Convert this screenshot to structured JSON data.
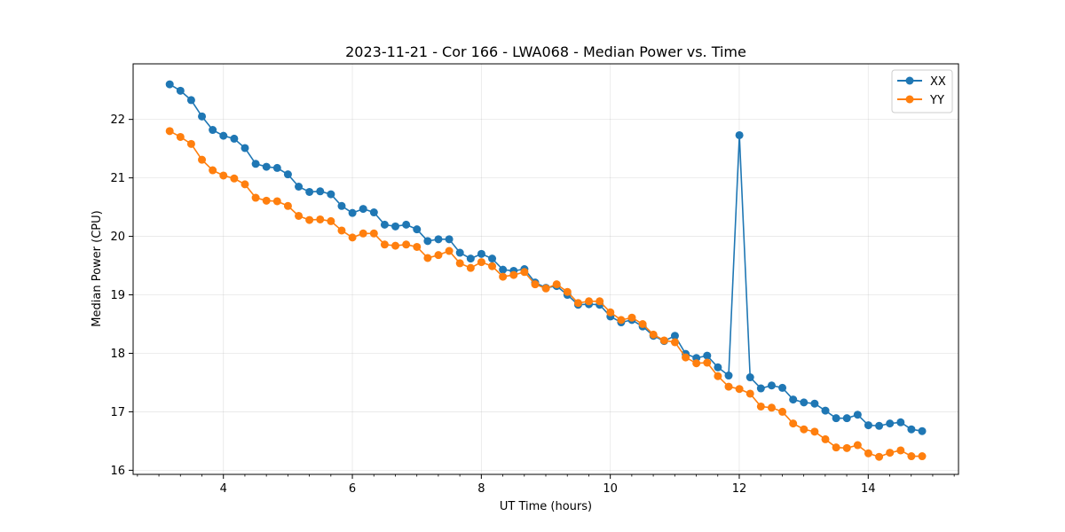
{
  "chart_data": {
    "type": "line",
    "title": "2023-11-21 - Cor 166 - LWA068 - Median Power vs. Time",
    "xlabel": "UT Time (hours)",
    "ylabel": "Median Power (CPU)",
    "xlim": [
      2.6,
      15.4
    ],
    "ylim": [
      15.93,
      22.95
    ],
    "xticks": [
      4,
      6,
      8,
      10,
      12,
      14
    ],
    "xtick_labels": [
      "4",
      "6",
      "8",
      "10",
      "12",
      "14"
    ],
    "xminor_step": 0.333333,
    "yticks": [
      16,
      17,
      18,
      19,
      20,
      21,
      22
    ],
    "ytick_labels": [
      "16",
      "17",
      "18",
      "19",
      "20",
      "21",
      "22"
    ],
    "grid": true,
    "legend": "top-right",
    "x_start": 3.167,
    "x_step": 0.1667,
    "series": [
      {
        "name": "XX",
        "color": "#1f77b4",
        "values": [
          22.6,
          22.49,
          22.33,
          22.05,
          21.82,
          21.72,
          21.67,
          21.51,
          21.24,
          21.19,
          21.17,
          21.06,
          20.85,
          20.76,
          20.77,
          20.72,
          20.52,
          20.4,
          20.47,
          20.41,
          20.2,
          20.17,
          20.2,
          20.12,
          19.92,
          19.95,
          19.95,
          19.72,
          19.62,
          19.7,
          19.62,
          19.43,
          19.41,
          19.44,
          19.21,
          19.12,
          19.15,
          19.0,
          18.83,
          18.84,
          18.83,
          18.63,
          18.53,
          18.57,
          18.46,
          18.3,
          18.21,
          18.3,
          17.99,
          17.92,
          17.96,
          17.76,
          17.62,
          21.73,
          17.59,
          17.4,
          17.45,
          17.41,
          17.21,
          17.16,
          17.14,
          17.02,
          16.89,
          16.89,
          16.95,
          16.77,
          16.76,
          16.8,
          16.82,
          16.7,
          16.67
        ]
      },
      {
        "name": "YY",
        "color": "#ff7f0e",
        "values": [
          21.8,
          21.7,
          21.58,
          21.31,
          21.13,
          21.04,
          20.99,
          20.89,
          20.66,
          20.61,
          20.6,
          20.52,
          20.35,
          20.28,
          20.29,
          20.26,
          20.1,
          19.98,
          20.05,
          20.05,
          19.86,
          19.84,
          19.86,
          19.82,
          19.63,
          19.68,
          19.75,
          19.54,
          19.46,
          19.56,
          19.49,
          19.31,
          19.34,
          19.39,
          19.18,
          19.11,
          19.18,
          19.05,
          18.86,
          18.89,
          18.89,
          18.7,
          18.57,
          18.61,
          18.5,
          18.32,
          18.22,
          18.19,
          17.93,
          17.83,
          17.84,
          17.61,
          17.43,
          17.39,
          17.31,
          17.09,
          17.07,
          17.0,
          16.8,
          16.7,
          16.66,
          16.53,
          16.39,
          16.38,
          16.43,
          16.29,
          16.23,
          16.3,
          16.34,
          16.24,
          16.24
        ]
      }
    ]
  }
}
